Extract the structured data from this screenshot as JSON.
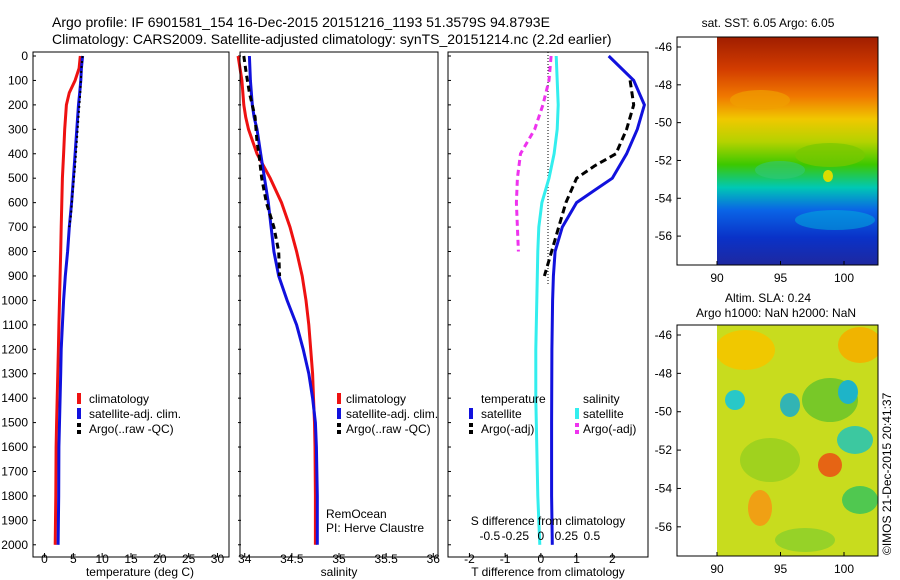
{
  "title_line1": "Argo profile: IF 6901581_154 16-Dec-2015 20151216_1193 51.3579S 94.8793E",
  "title_line2": "Climatology: CARS2009. Satellite-adjusted climatology: synTS_20151214.nc (2.2d earlier)",
  "depth_ticks": [
    0,
    100,
    200,
    300,
    400,
    500,
    600,
    700,
    800,
    900,
    1000,
    1100,
    1200,
    1300,
    1400,
    1500,
    1600,
    1700,
    1800,
    1900,
    2000
  ],
  "colors": {
    "climatology": "#ee1111",
    "satellite": "#1111dd",
    "argo": "#000000",
    "sal_sat": "#33eeee",
    "sal_argo": "#ee33ee"
  },
  "panel_temp": {
    "xlabel": "temperature (deg C)",
    "xticks": [
      "0",
      "5",
      "10",
      "15",
      "20",
      "25",
      "30"
    ],
    "legend": [
      "climatology",
      "satellite-adj. clim.",
      "Argo(..raw -QC)"
    ]
  },
  "panel_sal": {
    "xlabel": "salinity",
    "xticks": [
      "34",
      "34.5",
      "35",
      "35.5",
      "36"
    ],
    "legend": [
      "climatology",
      "satellite-adj. clim.",
      "Argo(..raw -QC)"
    ],
    "note1": "RemOcean",
    "note2": "PI: Herve Claustre"
  },
  "panel_diff": {
    "xlabel": "T difference from climatology",
    "xticks": [
      "-2",
      "-1",
      "0",
      "1",
      "2"
    ],
    "top_label": "S difference from climatology",
    "top_ticks": [
      "-0.5",
      "-0.25",
      "0",
      "0.25",
      "0.5"
    ],
    "legend_head_t": "temperature",
    "legend_head_s": "salinity",
    "legend_t": [
      "satellite",
      "Argo(-adj)"
    ],
    "legend_s": [
      "satellite",
      "Argo(-adj)"
    ]
  },
  "map_top": {
    "title": "sat. SST: 6.05 Argo: 6.05",
    "yticks": [
      "-46",
      "-48",
      "-50",
      "-52",
      "-54",
      "-56"
    ],
    "xticks": [
      "90",
      "95",
      "100"
    ]
  },
  "map_bottom": {
    "title1": "Altim. SLA: 0.24",
    "title2": "Argo h1000: NaN h2000: NaN",
    "yticks": [
      "-46",
      "-48",
      "-50",
      "-52",
      "-54",
      "-56"
    ],
    "xticks": [
      "90",
      "95",
      "100"
    ]
  },
  "credit": "©IMOS 21-Dec-2015 20:41:37",
  "chart_data": [
    {
      "type": "line",
      "xlabel": "temperature (deg C)",
      "ylabel": "",
      "xlim": [
        -2,
        32
      ],
      "ylim": [
        2050,
        0
      ],
      "series": [
        {
          "name": "climatology",
          "x": [
            6.2,
            6.0,
            5.3,
            4.3,
            3.8,
            3.5,
            3.3,
            3.1,
            3.0,
            2.9,
            2.8,
            2.7,
            2.6,
            2.5,
            2.4,
            2.3,
            2.2,
            2.1,
            2.0,
            1.95,
            1.9,
            1.85
          ],
          "y": [
            0,
            50,
            100,
            150,
            200,
            300,
            400,
            500,
            600,
            700,
            800,
            900,
            1000,
            1100,
            1200,
            1300,
            1400,
            1500,
            1600,
            1800,
            1900,
            2000
          ]
        },
        {
          "name": "satellite-adj. clim.",
          "x": [
            6.6,
            6.4,
            6.3,
            6.1,
            5.9,
            5.6,
            5.3,
            5.0,
            4.7,
            4.3,
            4.0,
            3.6,
            3.3,
            3.1,
            2.9,
            2.8,
            2.7,
            2.6,
            2.5,
            2.45,
            2.4,
            2.35
          ],
          "y": [
            0,
            50,
            100,
            150,
            200,
            300,
            400,
            500,
            600,
            700,
            800,
            900,
            1000,
            1100,
            1200,
            1300,
            1400,
            1500,
            1600,
            1800,
            1900,
            2000
          ]
        },
        {
          "name": "Argo(..raw -QC)",
          "x": [
            6.6,
            6.4,
            6.2,
            5.9,
            5.6,
            5.3,
            4.9,
            4.6,
            4.3
          ],
          "y": [
            0,
            50,
            150,
            250,
            350,
            450,
            550,
            650,
            700
          ]
        }
      ]
    },
    {
      "type": "line",
      "xlabel": "salinity",
      "ylabel": "",
      "xlim": [
        33.95,
        36.05
      ],
      "ylim": [
        2050,
        0
      ],
      "series": [
        {
          "name": "climatology",
          "x": [
            33.93,
            33.97,
            33.99,
            34.01,
            34.04,
            34.13,
            34.27,
            34.39,
            34.48,
            34.55,
            34.61,
            34.65,
            34.68,
            34.7,
            34.72,
            34.73,
            34.74,
            34.745,
            34.75,
            34.75
          ],
          "y": [
            0,
            100,
            200,
            250,
            300,
            400,
            500,
            600,
            700,
            800,
            900,
            1000,
            1100,
            1200,
            1300,
            1400,
            1500,
            1600,
            1800,
            2000
          ]
        },
        {
          "name": "satellite-adj. clim.",
          "x": [
            34.05,
            34.06,
            34.08,
            34.1,
            34.13,
            34.17,
            34.21,
            34.25,
            34.28,
            34.31,
            34.36,
            34.45,
            34.55,
            34.62,
            34.68,
            34.72,
            34.75,
            34.76,
            34.77,
            34.77
          ],
          "y": [
            0,
            100,
            200,
            250,
            300,
            400,
            500,
            600,
            700,
            800,
            900,
            1000,
            1100,
            1200,
            1300,
            1400,
            1500,
            1600,
            1800,
            2000
          ]
        },
        {
          "name": "Argo(..raw -QC)",
          "x": [
            33.99,
            34.02,
            34.05,
            34.11,
            34.12,
            34.13,
            34.15,
            34.18,
            34.23,
            34.31,
            34.36,
            34.37
          ],
          "y": [
            0,
            80,
            150,
            250,
            300,
            350,
            400,
            500,
            600,
            700,
            800,
            900
          ]
        }
      ]
    },
    {
      "type": "line",
      "xlabel": "T difference from climatology",
      "ylabel": "",
      "xlim": [
        -2.6,
        3.0
      ],
      "ylim": [
        2050,
        0
      ],
      "series": [
        {
          "name": "satellite",
          "x": [
            1.9,
            2.6,
            2.9,
            2.7,
            2.4,
            2.0,
            1.5,
            1.0,
            0.6,
            0.4,
            0.35,
            0.33,
            0.31,
            0.3,
            0.3,
            0.32
          ],
          "y": [
            0,
            100,
            200,
            300,
            400,
            500,
            550,
            600,
            700,
            800,
            900,
            1000,
            1200,
            1500,
            1800,
            2000
          ]
        },
        {
          "name": "Argo(-adj)",
          "x": [
            2.5,
            2.6,
            2.4,
            2.1,
            1.5,
            1.0,
            0.7,
            0.5,
            0.3,
            0.1
          ],
          "y": [
            100,
            200,
            300,
            400,
            450,
            500,
            600,
            700,
            800,
            900
          ]
        },
        {
          "name": "satellite",
          "x": [
            0.15,
            0.16,
            0.17,
            0.16,
            0.13,
            0.08,
            0.01,
            -0.02,
            -0.03,
            -0.04,
            -0.05,
            -0.05,
            -0.04,
            -0.03,
            -0.01
          ],
          "y": [
            0,
            100,
            200,
            300,
            400,
            500,
            600,
            700,
            800,
            1000,
            1200,
            1400,
            1600,
            1800,
            2000
          ]
        },
        {
          "name": "Argo(-adj)",
          "x": [
            0.1,
            0.08,
            0.02,
            -0.06,
            -0.2,
            -0.23,
            -0.24,
            -0.23,
            -0.22
          ],
          "y": [
            0,
            100,
            200,
            300,
            400,
            500,
            600,
            700,
            800
          ]
        }
      ]
    }
  ]
}
